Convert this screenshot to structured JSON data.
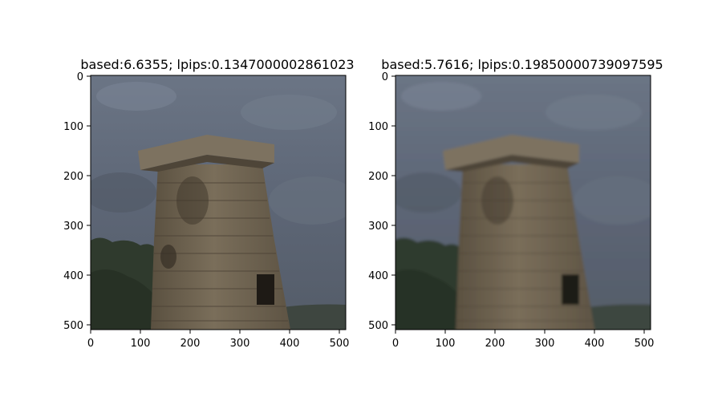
{
  "panels": [
    {
      "title": "based:6.6355; lpips:0.1347000002861023",
      "xticks": [
        "0",
        "100",
        "200",
        "300",
        "400",
        "500"
      ],
      "yticks": [
        "0",
        "100",
        "200",
        "300",
        "400",
        "500"
      ],
      "image": "sharp photo of ancient stone observatory tower against cloudy grey-blue sky with trees at lower left"
    },
    {
      "title": "based:5.7616; lpips:0.19850000739097595",
      "xticks": [
        "0",
        "100",
        "200",
        "300",
        "400",
        "500"
      ],
      "yticks": [
        "0",
        "100",
        "200",
        "300",
        "400",
        "500"
      ],
      "image": "slightly blurred photo of the same ancient stone observatory tower against cloudy sky"
    }
  ],
  "colors": {
    "sky": "#5b6472",
    "stone": "#6e6250",
    "trees": "#2e3a2c",
    "background": "#ffffff"
  }
}
